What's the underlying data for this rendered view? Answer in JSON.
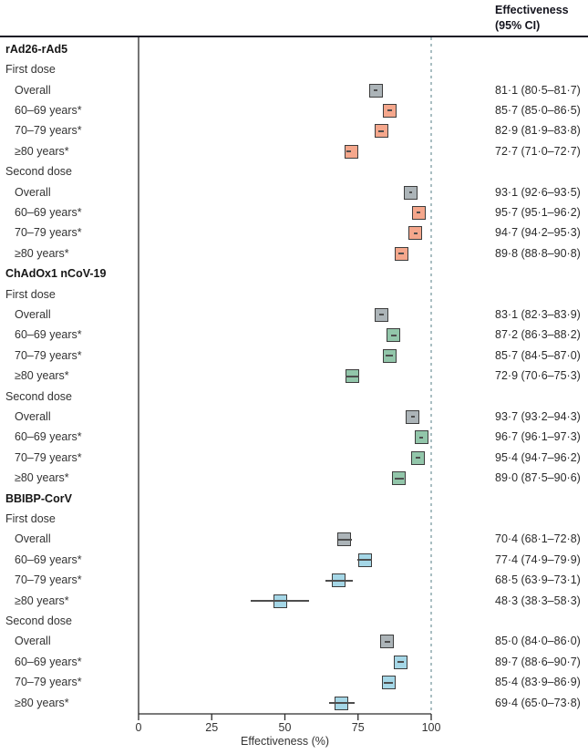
{
  "header": {
    "effectiveness_col_line1": "Effectiveness",
    "effectiveness_col_line2": "(95% CI)"
  },
  "chart_data": {
    "type": "forest",
    "title": "",
    "xlabel": "Effectiveness (%)",
    "x_ticks": [
      0,
      25,
      50,
      75,
      100
    ],
    "xlim": [
      0,
      100
    ],
    "reference_line": 100,
    "colors": {
      "gray": "#ACB4B8",
      "orange": "#F5A78C",
      "green": "#92C6AA",
      "blue": "#A5D7E7",
      "marker_border": "#3C3C3C",
      "ci_line": "#4D4D4D",
      "dashed_reference": "#A9BEC2",
      "axis": "#2B2B2B",
      "header_rule": "#1A1A26"
    },
    "rows": [
      {
        "kind": "section",
        "label": "rAd26-rAd5"
      },
      {
        "kind": "subhead",
        "label": "First dose"
      },
      {
        "kind": "item",
        "label": "Overall",
        "value": 81.1,
        "lo": 80.5,
        "hi": 81.7,
        "color": "gray",
        "text": "81·1 (80·5–81·7)"
      },
      {
        "kind": "item",
        "label": "60–69 years*",
        "value": 85.7,
        "lo": 85.0,
        "hi": 86.5,
        "color": "orange",
        "text": "85·7 (85·0–86·5)"
      },
      {
        "kind": "item",
        "label": "70–79 years*",
        "value": 82.9,
        "lo": 81.9,
        "hi": 83.8,
        "color": "orange",
        "text": "82·9 (81·9–83·8)"
      },
      {
        "kind": "item",
        "label": "≥80 years*",
        "value": 72.7,
        "lo": 71.0,
        "hi": 72.7,
        "color": "orange",
        "text": "72·7 (71·0–72·7)"
      },
      {
        "kind": "subhead",
        "label": "Second dose"
      },
      {
        "kind": "item",
        "label": "Overall",
        "value": 93.1,
        "lo": 92.6,
        "hi": 93.5,
        "color": "gray",
        "text": "93·1 (92·6–93·5)"
      },
      {
        "kind": "item",
        "label": "60–69 years*",
        "value": 95.7,
        "lo": 95.1,
        "hi": 96.2,
        "color": "orange",
        "text": "95·7 (95·1–96·2)"
      },
      {
        "kind": "item",
        "label": "70–79 years*",
        "value": 94.7,
        "lo": 94.2,
        "hi": 95.3,
        "color": "orange",
        "text": "94·7 (94·2–95·3)"
      },
      {
        "kind": "item",
        "label": "≥80 years*",
        "value": 89.8,
        "lo": 88.8,
        "hi": 90.8,
        "color": "orange",
        "text": "89·8 (88·8–90·8)"
      },
      {
        "kind": "section",
        "label": "ChAdOx1 nCoV-19"
      },
      {
        "kind": "subhead",
        "label": "First dose"
      },
      {
        "kind": "item",
        "label": "Overall",
        "value": 83.1,
        "lo": 82.3,
        "hi": 83.9,
        "color": "gray",
        "text": "83·1 (82·3–83·9)"
      },
      {
        "kind": "item",
        "label": "60–69 years*",
        "value": 87.2,
        "lo": 86.3,
        "hi": 88.2,
        "color": "green",
        "text": "87·2 (86·3–88·2)"
      },
      {
        "kind": "item",
        "label": "70–79 years*",
        "value": 85.7,
        "lo": 84.5,
        "hi": 87.0,
        "color": "green",
        "text": "85·7 (84·5–87·0)"
      },
      {
        "kind": "item",
        "label": "≥80 years*",
        "value": 72.9,
        "lo": 70.6,
        "hi": 75.3,
        "color": "green",
        "text": "72·9 (70·6–75·3)"
      },
      {
        "kind": "subhead",
        "label": "Second dose"
      },
      {
        "kind": "item",
        "label": "Overall",
        "value": 93.7,
        "lo": 93.2,
        "hi": 94.3,
        "color": "gray",
        "text": "93·7 (93·2–94·3)"
      },
      {
        "kind": "item",
        "label": "60–69 years*",
        "value": 96.7,
        "lo": 96.1,
        "hi": 97.3,
        "color": "green",
        "text": "96·7 (96·1–97·3)"
      },
      {
        "kind": "item",
        "label": "70–79 years*",
        "value": 95.4,
        "lo": 94.7,
        "hi": 96.2,
        "color": "green",
        "text": "95·4 (94·7–96·2)"
      },
      {
        "kind": "item",
        "label": "≥80 years*",
        "value": 89.0,
        "lo": 87.5,
        "hi": 90.6,
        "color": "green",
        "text": "89·0 (87·5–90·6)"
      },
      {
        "kind": "section",
        "label": "BBIBP-CorV"
      },
      {
        "kind": "subhead",
        "label": "First dose"
      },
      {
        "kind": "item",
        "label": "Overall",
        "value": 70.4,
        "lo": 68.1,
        "hi": 72.8,
        "color": "gray",
        "text": "70·4 (68·1–72·8)"
      },
      {
        "kind": "item",
        "label": "60–69 years*",
        "value": 77.4,
        "lo": 74.9,
        "hi": 79.9,
        "color": "blue",
        "text": "77·4 (74·9–79·9)"
      },
      {
        "kind": "item",
        "label": "70–79 years*",
        "value": 68.5,
        "lo": 63.9,
        "hi": 73.1,
        "color": "blue",
        "text": "68·5 (63·9–73·1)"
      },
      {
        "kind": "item",
        "label": "≥80 years*",
        "value": 48.3,
        "lo": 38.3,
        "hi": 58.3,
        "color": "blue",
        "text": "48·3 (38·3–58·3)"
      },
      {
        "kind": "subhead",
        "label": "Second dose"
      },
      {
        "kind": "item",
        "label": "Overall",
        "value": 85.0,
        "lo": 84.0,
        "hi": 86.0,
        "color": "gray",
        "text": "85·0 (84·0–86·0)"
      },
      {
        "kind": "item",
        "label": "60–69 years*",
        "value": 89.7,
        "lo": 88.6,
        "hi": 90.7,
        "color": "blue",
        "text": "89·7 (88·6–90·7)"
      },
      {
        "kind": "item",
        "label": "70–79 years*",
        "value": 85.4,
        "lo": 83.9,
        "hi": 86.9,
        "color": "blue",
        "text": "85·4 (83·9–86·9)"
      },
      {
        "kind": "item",
        "label": "≥80 years*",
        "value": 69.4,
        "lo": 65.0,
        "hi": 73.8,
        "color": "blue",
        "text": "69·4 (65·0–73·8)"
      }
    ]
  }
}
